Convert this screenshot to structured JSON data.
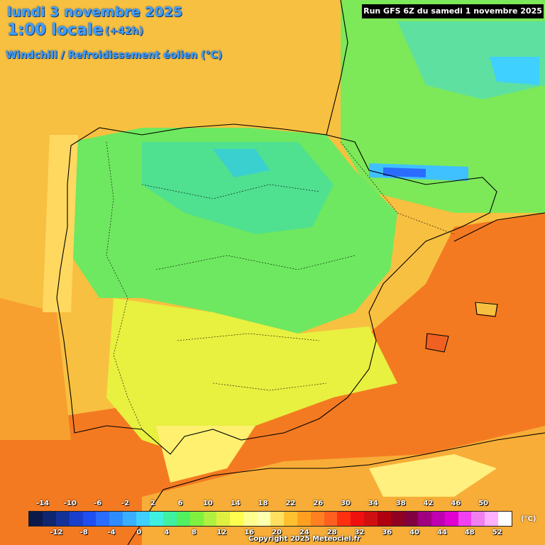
{
  "header": {
    "date": "lundi 3 novembre 2025",
    "time": "1:00 locale",
    "offset": "(+42h)",
    "parameter": "Windchill / Refroidissement éolien (°C)",
    "run": "Run GFS 6Z du samedi 1 novembre 2025"
  },
  "legend": {
    "unit": "(°C)",
    "top_labels": [
      "-14",
      "-10",
      "-6",
      "-2",
      "2",
      "6",
      "10",
      "14",
      "18",
      "22",
      "26",
      "30",
      "34",
      "38",
      "42",
      "46",
      "50"
    ],
    "bottom_labels": [
      "-12",
      "-8",
      "-4",
      "0",
      "4",
      "8",
      "12",
      "16",
      "20",
      "24",
      "28",
      "32",
      "36",
      "40",
      "44",
      "48",
      "52"
    ],
    "colors": [
      "#0b1a4a",
      "#0e2670",
      "#12329a",
      "#1a3fcc",
      "#1f4ff0",
      "#2a6cff",
      "#2e8cff",
      "#3aaeff",
      "#3fd0ff",
      "#3ff0e0",
      "#3ff0a0",
      "#50f060",
      "#80f040",
      "#b0f040",
      "#e0f040",
      "#ffff50",
      "#ffff90",
      "#ffffb0",
      "#ffe060",
      "#ffc030",
      "#ffa020",
      "#ff8020",
      "#ff6020",
      "#ff3010",
      "#f01010",
      "#d01010",
      "#b00010",
      "#900020",
      "#800040",
      "#a00080",
      "#c000b0",
      "#e000d0",
      "#f040f0",
      "#f080f0",
      "#ffb0ff",
      "#ffffff"
    ]
  },
  "copyright": "Copyright 2025 Meteociel.fr",
  "colors": {
    "title": "#3fa0ff",
    "land_cool": "#6cf05a",
    "land_cold": "#3ad0a0",
    "land_mild": "#e6f040",
    "sea_warm": "#f7b23a",
    "sea_hot": "#f47a22"
  }
}
